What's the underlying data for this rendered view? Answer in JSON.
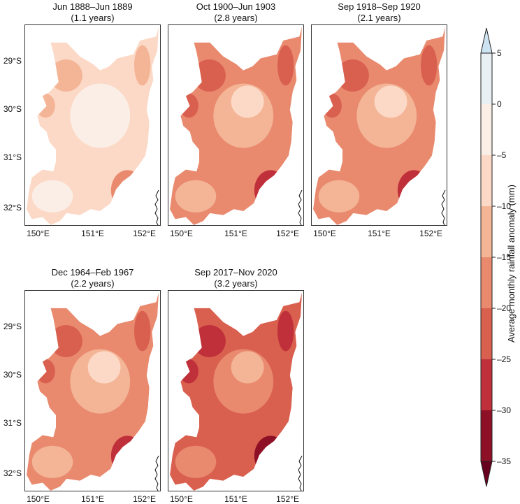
{
  "chart_data": {
    "type": "heatmap",
    "title": "",
    "description": "Average monthly rainfall anomaly maps for five drought periods over a catchment in NSW, Australia",
    "xlabel": "",
    "ylabel": "",
    "x_ticks": [
      "150°E",
      "151°E",
      "152°E"
    ],
    "y_ticks": [
      "29°S",
      "30°S",
      "31°S",
      "32°S"
    ],
    "lon_range": [
      149.8,
      152.5
    ],
    "lat_range": [
      -32.4,
      -28.3
    ],
    "panels": [
      {
        "title": "Jun 1888–Jun 1889",
        "subtitle": "(1.1 years)",
        "dominant_level": -7.5,
        "min_level": -17.5,
        "max_level": -2.5
      },
      {
        "title": "Oct 1900–Jun 1903",
        "subtitle": "(2.8 years)",
        "dominant_level": -17.5,
        "min_level": -32.5,
        "max_level": -7.5
      },
      {
        "title": "Sep 1918–Sep 1920",
        "subtitle": "(2.1 years)",
        "dominant_level": -17.5,
        "min_level": -32.5,
        "max_level": -7.5
      },
      {
        "title": "Dec 1964–Feb 1967",
        "subtitle": "(2.2 years)",
        "dominant_level": -17.5,
        "min_level": -32.5,
        "max_level": -7.5
      },
      {
        "title": "Sep 2017–Nov 2020",
        "subtitle": "(3.2 years)",
        "dominant_level": -22.5,
        "min_level": -32.5,
        "max_level": -12.5
      }
    ],
    "colorbar": {
      "label": "Average monthly rainfall anomaly (mm)",
      "ticks": [
        5,
        0,
        -5,
        -10,
        -15,
        -20,
        -25,
        -30,
        -35
      ],
      "levels": [
        -35,
        -30,
        -25,
        -20,
        -15,
        -10,
        -5,
        0,
        5
      ],
      "colors": [
        "#8e1027",
        "#c0303a",
        "#d9604f",
        "#e98a6f",
        "#f4b597",
        "#fcd9c6",
        "#fbeee6",
        "#e9f0f4",
        "#cde3f1"
      ],
      "over_color": "#cde3f1",
      "under_color": "#67001f",
      "extend": "both"
    }
  }
}
